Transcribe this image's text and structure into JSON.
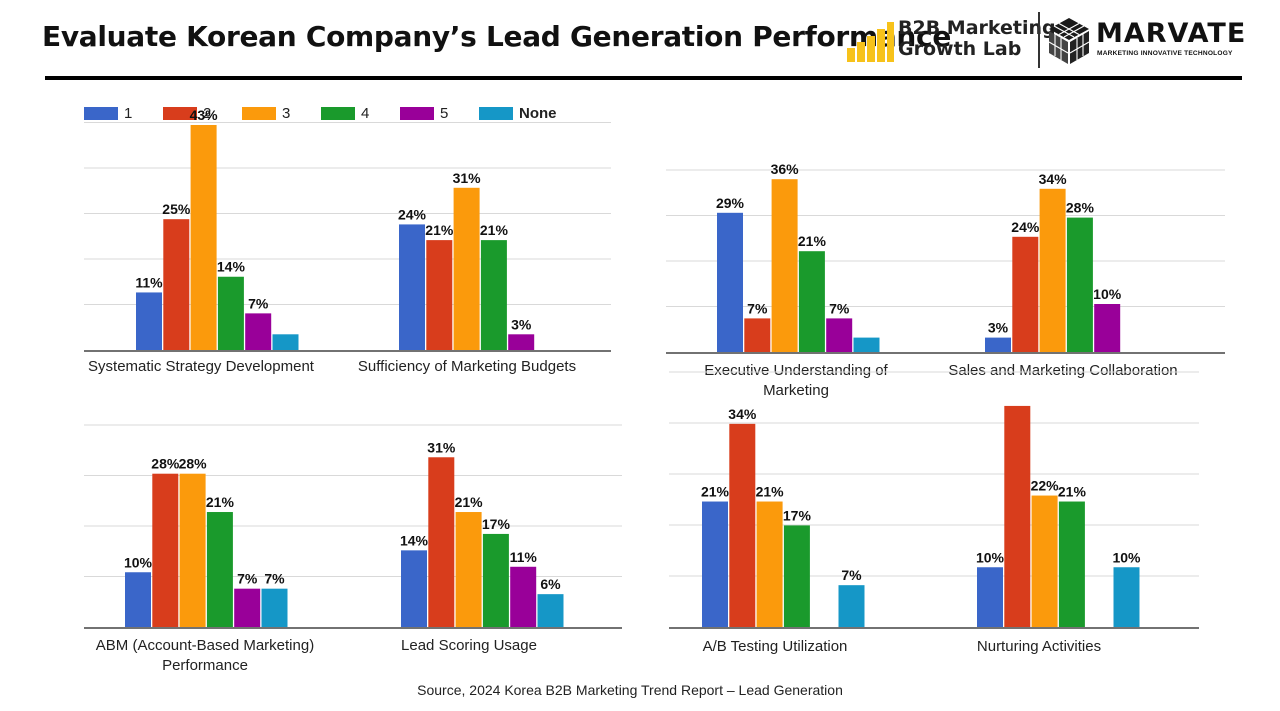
{
  "header": {
    "title": "Evaluate Korean Company’s Lead Generation Performance",
    "b2b_logo_line1": "B2B Marketing",
    "b2b_logo_line2": "Growth Lab",
    "marvate_name": "MARVATE",
    "marvate_tagline": "MARKETING INNOVATIVE TECHNOLOGY"
  },
  "legend": [
    {
      "label": "1",
      "color": "#3a66c9"
    },
    {
      "label": "2",
      "color": "#d83d1c"
    },
    {
      "label": "3",
      "color": "#fb9a0c"
    },
    {
      "label": "4",
      "color": "#1a9a2c"
    },
    {
      "label": "5",
      "color": "#990099"
    },
    {
      "label": "None",
      "color": "#1597c7"
    }
  ],
  "source": "Source, 2024 Korea B2B Marketing Trend Report – Lead Generation",
  "chart_data": [
    {
      "type": "bar",
      "series": [
        "1",
        "2",
        "3",
        "4",
        "5",
        "None"
      ],
      "ylim": [
        0,
        43
      ],
      "grid": true,
      "groups": [
        {
          "label": [
            "Systematic Strategy Development"
          ],
          "values": [
            11,
            25,
            43,
            14,
            7,
            3
          ],
          "labels": [
            "11%",
            "25%",
            "43%",
            "14%",
            "7%",
            ""
          ]
        },
        {
          "label": [
            "Sufficiency of Marketing Budgets"
          ],
          "values": [
            24,
            21,
            31,
            21,
            3,
            null
          ],
          "labels": [
            "24%",
            "21%",
            "31%",
            "21%",
            "3%",
            ""
          ]
        }
      ]
    },
    {
      "type": "bar",
      "series": [
        "1",
        "2",
        "3",
        "4",
        "5",
        "None"
      ],
      "ylim": [
        0,
        40
      ],
      "grid": true,
      "groups": [
        {
          "label": [
            "Executive Understanding of",
            "Marketing"
          ],
          "values": [
            29,
            7,
            36,
            21,
            7,
            3
          ],
          "labels": [
            "29%",
            "7%",
            "36%",
            "21%",
            "7%",
            ""
          ]
        },
        {
          "label": [
            "Sales and Marketing Collaboration"
          ],
          "values": [
            3,
            24,
            34,
            28,
            10,
            null
          ],
          "labels": [
            "3%",
            "24%",
            "34%",
            "28%",
            "10%",
            ""
          ]
        }
      ]
    },
    {
      "type": "bar",
      "series": [
        "1",
        "2",
        "3",
        "4",
        "5",
        "None"
      ],
      "ylim": [
        0,
        40
      ],
      "grid": true,
      "groups": [
        {
          "label": [
            "ABM (Account-Based Marketing)",
            "Performance"
          ],
          "values": [
            10,
            28,
            28,
            21,
            7,
            7
          ],
          "labels": [
            "10%",
            "28%",
            "28%",
            "21%",
            "7%",
            "7%"
          ]
        },
        {
          "label": [
            "Lead Scoring Usage"
          ],
          "values": [
            14,
            31,
            21,
            17,
            11,
            6
          ],
          "labels": [
            "14%",
            "31%",
            "21%",
            "17%",
            "11%",
            "6%"
          ]
        }
      ]
    },
    {
      "type": "bar",
      "series": [
        "1",
        "2",
        "3",
        "4",
        "5",
        "None"
      ],
      "ylim": [
        0,
        40
      ],
      "grid": true,
      "groups": [
        {
          "label": [
            "A/B Testing Utilization"
          ],
          "values": [
            21,
            34,
            21,
            17,
            null,
            7
          ],
          "labels": [
            "21%",
            "34%",
            "21%",
            "17%",
            "",
            "7%"
          ]
        },
        {
          "label": [
            "Nurturing Activities"
          ],
          "values": [
            10,
            37,
            22,
            21,
            null,
            10
          ],
          "labels": [
            "10%",
            "",
            "22%",
            "21%",
            "",
            "10%"
          ]
        }
      ]
    }
  ]
}
